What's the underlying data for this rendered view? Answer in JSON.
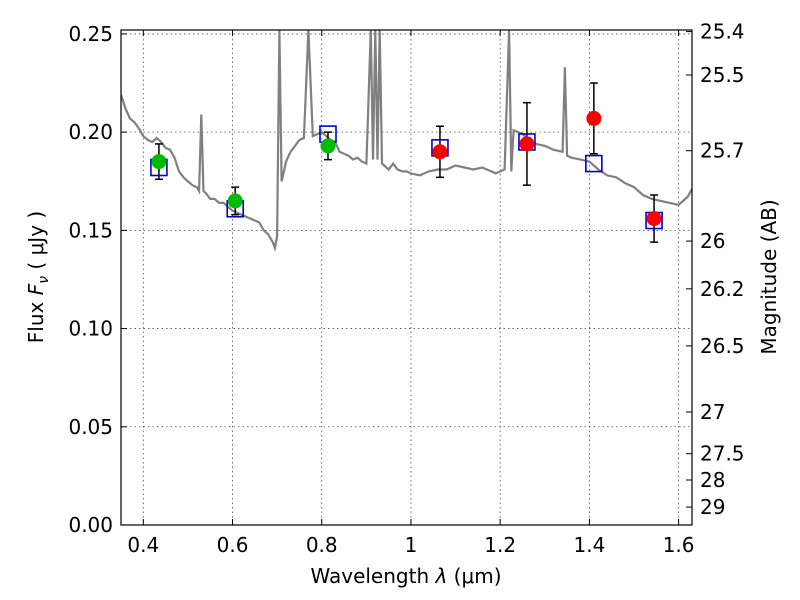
{
  "chart_data": {
    "type": "scatter",
    "xlabel": "Wavelength  λ (μm)",
    "ylabel": "Flux  F_ν  ( μJy )",
    "ylabel_parts": {
      "prefix": "Flux  ",
      "symbol": "F",
      "subscript": "ν",
      "unit": "  ( μJy )"
    },
    "xlabel_parts": {
      "prefix": "Wavelength  ",
      "symbol": "λ",
      "unit": " (μm)"
    },
    "y2label": "Magnitude (AB)",
    "xlim": [
      0.35,
      1.63
    ],
    "ylim": [
      0.0,
      0.252
    ],
    "grid": true,
    "x_ticks": [
      0.4,
      0.6,
      0.8,
      1.0,
      1.2,
      1.4,
      1.6
    ],
    "x_tick_labels": [
      "0.4",
      "0.6",
      "0.8",
      "1",
      "1.2",
      "1.4",
      "1.6"
    ],
    "y_ticks": [
      0.0,
      0.05,
      0.1,
      0.15,
      0.2,
      0.25
    ],
    "y_tick_labels": [
      "0.00",
      "0.05",
      "0.10",
      "0.15",
      "0.20",
      "0.25"
    ],
    "mag_ticks": [
      25.4,
      25.5,
      25.7,
      26,
      26.2,
      26.5,
      27,
      27.5,
      28,
      29
    ],
    "mag_tick_labels": [
      "25.4",
      "25.5",
      "25.7",
      "26",
      "26.2",
      "26.5",
      "27",
      "27.5",
      "28",
      "29"
    ],
    "colors": {
      "model": "#808080",
      "green": "#00bb00",
      "red": "#ff0000",
      "box": "#0000cc",
      "errorbar": "#000000"
    },
    "series": [
      {
        "kind": "model-spectrum",
        "x": [
          0.35,
          0.36,
          0.37,
          0.38,
          0.39,
          0.4,
          0.41,
          0.42,
          0.43,
          0.44,
          0.45,
          0.46,
          0.47,
          0.48,
          0.49,
          0.5,
          0.51,
          0.52,
          0.525,
          0.53,
          0.535,
          0.54,
          0.55,
          0.56,
          0.57,
          0.58,
          0.59,
          0.6,
          0.61,
          0.62,
          0.63,
          0.64,
          0.65,
          0.66,
          0.67,
          0.68,
          0.69,
          0.695,
          0.7,
          0.705,
          0.71,
          0.72,
          0.73,
          0.74,
          0.75,
          0.76,
          0.77,
          0.78,
          0.79,
          0.8,
          0.81,
          0.82,
          0.83,
          0.84,
          0.85,
          0.86,
          0.87,
          0.88,
          0.89,
          0.9,
          0.91,
          0.915,
          0.92,
          0.925,
          0.93,
          0.935,
          0.94,
          0.945,
          0.95,
          0.96,
          0.97,
          0.98,
          0.99,
          1.0,
          1.02,
          1.04,
          1.06,
          1.08,
          1.1,
          1.12,
          1.14,
          1.16,
          1.18,
          1.19,
          1.2,
          1.21,
          1.22,
          1.225,
          1.23,
          1.24,
          1.25,
          1.26,
          1.28,
          1.3,
          1.32,
          1.34,
          1.345,
          1.35,
          1.36,
          1.38,
          1.4,
          1.42,
          1.44,
          1.46,
          1.48,
          1.5,
          1.52,
          1.54,
          1.56,
          1.58,
          1.6,
          1.62,
          1.63
        ],
        "y": [
          0.219,
          0.212,
          0.207,
          0.205,
          0.202,
          0.198,
          0.196,
          0.195,
          0.197,
          0.195,
          0.192,
          0.191,
          0.187,
          0.18,
          0.177,
          0.175,
          0.173,
          0.172,
          0.17,
          0.209,
          0.17,
          0.169,
          0.166,
          0.166,
          0.164,
          0.164,
          0.162,
          0.16,
          0.159,
          0.158,
          0.157,
          0.156,
          0.155,
          0.154,
          0.15,
          0.148,
          0.144,
          0.141,
          0.147,
          0.252,
          0.175,
          0.185,
          0.19,
          0.193,
          0.196,
          0.197,
          0.252,
          0.198,
          0.199,
          0.2,
          0.198,
          0.196,
          0.195,
          0.19,
          0.189,
          0.188,
          0.186,
          0.187,
          0.185,
          0.184,
          0.252,
          0.186,
          0.252,
          0.186,
          0.252,
          0.184,
          0.183,
          0.182,
          0.181,
          0.184,
          0.181,
          0.18,
          0.18,
          0.179,
          0.178,
          0.18,
          0.181,
          0.181,
          0.183,
          0.182,
          0.181,
          0.182,
          0.18,
          0.179,
          0.18,
          0.181,
          0.252,
          0.18,
          0.201,
          0.2,
          0.199,
          0.197,
          0.194,
          0.193,
          0.191,
          0.19,
          0.233,
          0.188,
          0.187,
          0.186,
          0.185,
          0.181,
          0.178,
          0.177,
          0.174,
          0.172,
          0.168,
          0.166,
          0.165,
          0.164,
          0.163,
          0.167,
          0.171
        ]
      },
      {
        "kind": "model-photometry",
        "name": "",
        "marker": "open-square",
        "x": [
          0.435,
          0.606,
          0.814,
          1.065,
          1.26,
          1.41,
          1.545
        ],
        "y": [
          0.182,
          0.161,
          0.199,
          0.192,
          0.195,
          0.184,
          0.155
        ]
      },
      {
        "kind": "observed-green",
        "marker": "filled-circle",
        "x": [
          0.435,
          0.606,
          0.814
        ],
        "y": [
          0.185,
          0.165,
          0.193
        ],
        "yerr": [
          0.009,
          0.007,
          0.007
        ]
      },
      {
        "kind": "observed-red",
        "marker": "filled-circle",
        "x": [
          1.065,
          1.26,
          1.41,
          1.545
        ],
        "y": [
          0.19,
          0.194,
          0.207,
          0.156
        ],
        "yerr": [
          0.013,
          0.021,
          0.018,
          0.012
        ]
      }
    ]
  }
}
